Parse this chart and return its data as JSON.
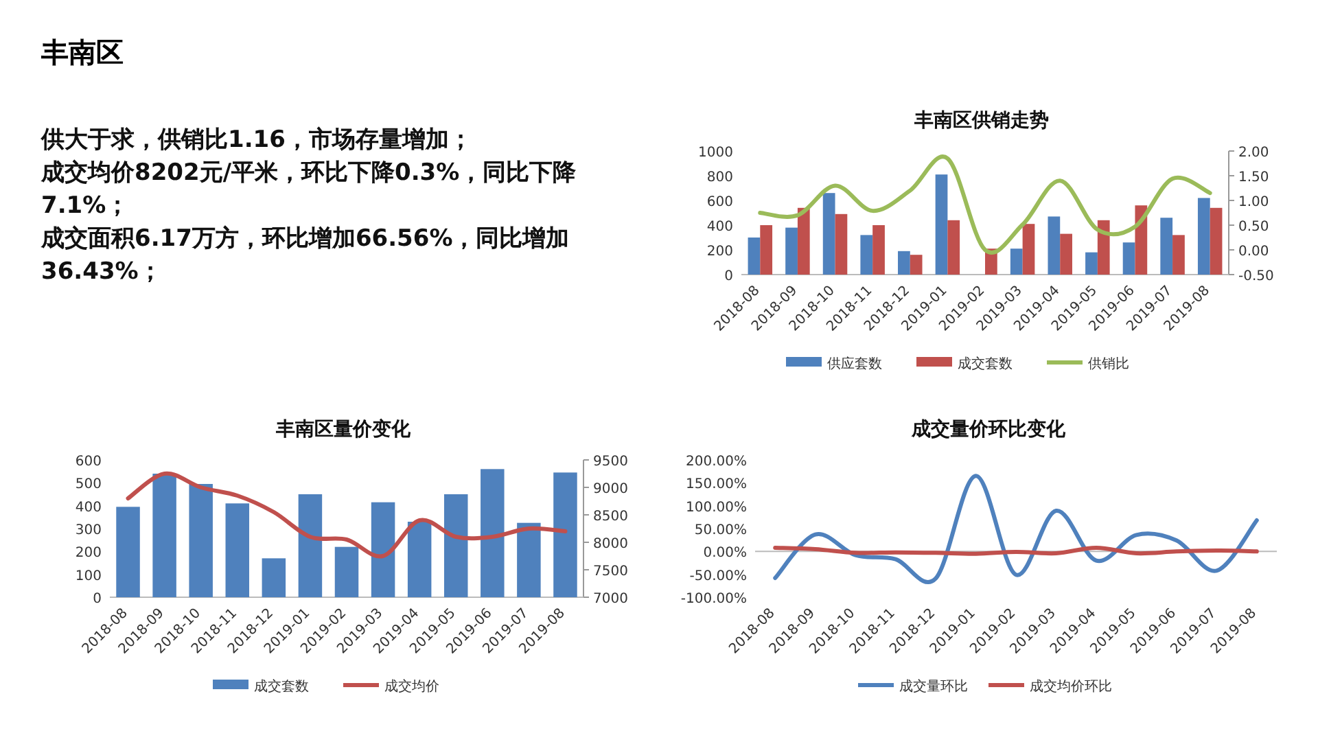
{
  "chart_data": [
    {
      "type": "other",
      "title": "丰南区",
      "annotations": [
        "供大于求，供销比1.16，市场存量增加；",
        "成交均价8202元/平米，环比下降0.3%，同比下降7.1%；",
        "成交面积6.17万方，环比增加66.56%，同比增加36.43%；"
      ]
    },
    {
      "type": "bar",
      "title": "丰南区供销走势",
      "categories": [
        "2018-08",
        "2018-09",
        "2018-10",
        "2018-11",
        "2018-12",
        "2019-01",
        "2019-02",
        "2019-03",
        "2019-04",
        "2019-05",
        "2019-06",
        "2019-07",
        "2019-08"
      ],
      "series": [
        {
          "name": "供应套数",
          "color": "#4f81bd",
          "values": [
            300,
            380,
            660,
            320,
            190,
            810,
            0,
            210,
            470,
            180,
            260,
            460,
            620
          ]
        },
        {
          "name": "成交套数",
          "color": "#c0504d",
          "values": [
            400,
            540,
            490,
            400,
            160,
            440,
            210,
            410,
            330,
            440,
            560,
            320,
            540
          ]
        },
        {
          "name": "供销比",
          "color": "#9bbb59",
          "type": "line",
          "axis": "y2",
          "values": [
            0.75,
            0.7,
            1.3,
            0.79,
            1.2,
            1.85,
            0.0,
            0.51,
            1.4,
            0.41,
            0.47,
            1.44,
            1.15
          ]
        }
      ],
      "ylim": [
        0,
        1000
      ],
      "yticks": [
        0,
        200,
        400,
        600,
        800,
        1000
      ],
      "y2lim": [
        -0.5,
        2
      ],
      "y2ticks": [
        {
          "value": -0.5,
          "label": "-0.50"
        },
        {
          "value": 0,
          "label": "0.00"
        },
        {
          "value": 0.5,
          "label": "0.50"
        },
        {
          "value": 1,
          "label": "1.00"
        },
        {
          "value": 1.5,
          "label": "1.50"
        },
        {
          "value": 2,
          "label": "2.00"
        }
      ],
      "legend": "bottom"
    },
    {
      "type": "bar",
      "title": "丰南区量价变化",
      "categories": [
        "2018-08",
        "2018-09",
        "2018-10",
        "2018-11",
        "2018-12",
        "2019-01",
        "2019-02",
        "2019-03",
        "2019-04",
        "2019-05",
        "2019-06",
        "2019-07",
        "2019-08"
      ],
      "series": [
        {
          "name": "成交套数",
          "color": "#4f81bd",
          "values": [
            395,
            540,
            495,
            410,
            170,
            450,
            220,
            415,
            330,
            450,
            560,
            325,
            545
          ]
        },
        {
          "name": "成交均价",
          "color": "#c0504d",
          "type": "line",
          "axis": "y2",
          "values": [
            8800,
            9250,
            9000,
            8850,
            8550,
            8100,
            8050,
            7750,
            8400,
            8100,
            8100,
            8250,
            8200
          ]
        }
      ],
      "ylim": [
        0,
        600
      ],
      "yticks": [
        0,
        100,
        200,
        300,
        400,
        500,
        600
      ],
      "y2lim": [
        7000,
        9500
      ],
      "y2ticks": [
        7000,
        7500,
        8000,
        8500,
        9000,
        9500
      ],
      "legend": "bottom"
    },
    {
      "type": "line",
      "title": "成交量价环比变化",
      "categories": [
        "2018-08",
        "2018-09",
        "2018-10",
        "2018-11",
        "2018-12",
        "2019-01",
        "2019-02",
        "2019-03",
        "2019-04",
        "2019-05",
        "2019-06",
        "2019-07",
        "2019-08"
      ],
      "series": [
        {
          "name": "成交量环比",
          "color": "#4f81bd",
          "values": [
            -58,
            37,
            -8,
            -17,
            -59,
            165,
            -51,
            89,
            -20,
            36,
            24,
            -42,
            68
          ]
        },
        {
          "name": "成交均价环比",
          "color": "#c0504d",
          "values": [
            8,
            5,
            -3,
            -2,
            -3,
            -5,
            -1,
            -4,
            8,
            -4,
            0,
            2,
            0
          ]
        }
      ],
      "ylim": [
        -100,
        200
      ],
      "yticks": [
        {
          "value": -100,
          "label": "-100.00%"
        },
        {
          "value": -50,
          "label": "-50.00%"
        },
        {
          "value": 0,
          "label": "0.00%"
        },
        {
          "value": 50,
          "label": "50.00%"
        },
        {
          "value": 100,
          "label": "100.00%"
        },
        {
          "value": 150,
          "label": "150.00%"
        },
        {
          "value": 200,
          "label": "200.00%"
        }
      ],
      "legend": "bottom"
    }
  ]
}
